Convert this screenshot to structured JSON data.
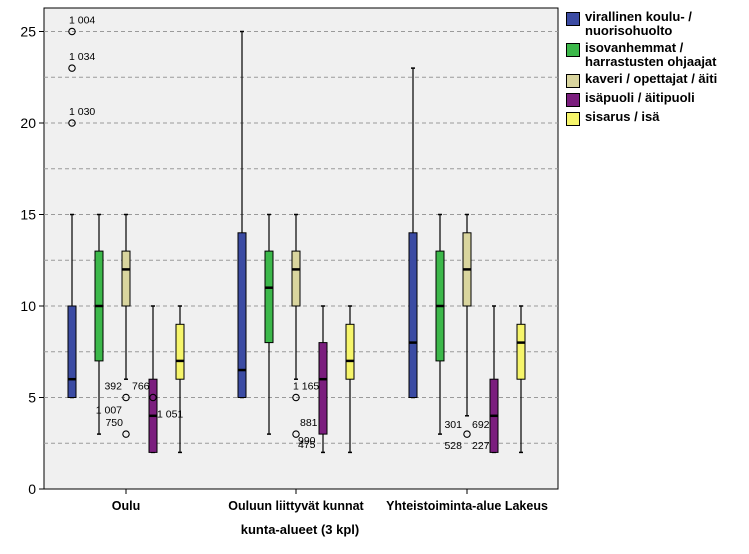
{
  "chart_data": {
    "type": "boxplot",
    "xlabel": "kunta-alueet (3 kpl)",
    "ylabel": "",
    "ylim": [
      0,
      26
    ],
    "yticks": [
      0,
      5,
      10,
      15,
      20,
      25
    ],
    "grid": true,
    "legend_position": "right",
    "categories": [
      "Oulu",
      "Ouluun liittyvät kunnat",
      "Yhteistoiminta-alue Lakeus"
    ],
    "series": [
      {
        "name": "virallinen koulu- / nuorisohuolto",
        "color": "#3b4ba3",
        "boxes": [
          {
            "min": 5,
            "q1": 5,
            "median": 6,
            "q3": 10,
            "max": 15
          },
          {
            "min": 5,
            "q1": 5,
            "median": 6.5,
            "q3": 14,
            "max": 25
          },
          {
            "min": 5,
            "q1": 5,
            "median": 8,
            "q3": 14,
            "max": 23
          }
        ]
      },
      {
        "name": "isovanhemmat / harrastusten ohjaajat",
        "color": "#3cb84a",
        "boxes": [
          {
            "min": 3,
            "q1": 7,
            "median": 10,
            "q3": 13,
            "max": 15
          },
          {
            "min": 3,
            "q1": 8,
            "median": 11,
            "q3": 13,
            "max": 15
          },
          {
            "min": 3,
            "q1": 7,
            "median": 10,
            "q3": 13,
            "max": 15
          }
        ]
      },
      {
        "name": "kaveri / opettajat / äiti",
        "color": "#d9d59e",
        "boxes": [
          {
            "min": 6,
            "q1": 10,
            "median": 12,
            "q3": 13,
            "max": 15
          },
          {
            "min": 6,
            "q1": 10,
            "median": 12,
            "q3": 13,
            "max": 15
          },
          {
            "min": 4,
            "q1": 10,
            "median": 12,
            "q3": 14,
            "max": 15
          }
        ]
      },
      {
        "name": "isäpuoli / äitipuoli",
        "color": "#7b1e7e",
        "boxes": [
          {
            "min": 2,
            "q1": 2,
            "median": 4,
            "q3": 6,
            "max": 10
          },
          {
            "min": 2,
            "q1": 3,
            "median": 6,
            "q3": 8,
            "max": 10
          },
          {
            "min": 2,
            "q1": 2,
            "median": 4,
            "q3": 6,
            "max": 10
          }
        ]
      },
      {
        "name": "sisarus / isä",
        "color": "#f6f56b",
        "boxes": [
          {
            "min": 2,
            "q1": 6,
            "median": 7,
            "q3": 9,
            "max": 10
          },
          {
            "min": 2,
            "q1": 6,
            "median": 7,
            "q3": 9,
            "max": 10
          },
          {
            "min": 2,
            "q1": 6,
            "median": 8,
            "q3": 9,
            "max": 10
          }
        ]
      }
    ],
    "outliers": [
      {
        "category": 0,
        "series": 0,
        "value": 25,
        "label": "1 004"
      },
      {
        "category": 0,
        "series": 0,
        "value": 23,
        "label": "1 034"
      },
      {
        "category": 0,
        "series": 0,
        "value": 20,
        "label": "1 030"
      },
      {
        "category": 0,
        "series": 2,
        "value": 5,
        "label": "392"
      },
      {
        "category": 0,
        "series": 2,
        "value": 5,
        "label": "766"
      },
      {
        "category": 0,
        "series": 2,
        "value": 5,
        "label": "1 007"
      },
      {
        "category": 0,
        "series": 2,
        "value": 3,
        "label": "750"
      },
      {
        "category": 0,
        "series": 3,
        "value": 5,
        "label": "1 051"
      },
      {
        "category": 1,
        "series": 2,
        "value": 5,
        "label": "1 165"
      },
      {
        "category": 1,
        "series": 2,
        "value": 3,
        "label": "990"
      },
      {
        "category": 1,
        "series": 2,
        "value": 3,
        "label": "881"
      },
      {
        "category": 1,
        "series": 2,
        "value": 3,
        "label": "475"
      },
      {
        "category": 2,
        "series": 2,
        "value": 3,
        "label": "301"
      },
      {
        "category": 2,
        "series": 2,
        "value": 3,
        "label": "692"
      },
      {
        "category": 2,
        "series": 2,
        "value": 3,
        "label": "528"
      },
      {
        "category": 2,
        "series": 2,
        "value": 3,
        "label": "227"
      }
    ]
  }
}
